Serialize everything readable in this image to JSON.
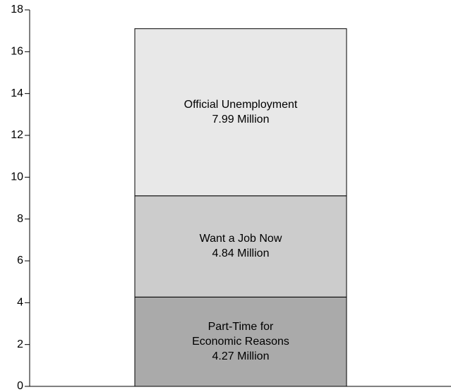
{
  "chart_data": {
    "type": "bar",
    "stacked": true,
    "title": "",
    "xlabel": "",
    "ylabel": "",
    "ylim": [
      0,
      18
    ],
    "yticks": [
      0,
      2,
      4,
      6,
      8,
      10,
      12,
      14,
      16,
      18
    ],
    "grid": false,
    "series": [
      {
        "label_lines": [
          "Part-Time for",
          "Economic Reasons",
          "4.27 Million"
        ],
        "value": 4.27,
        "color": "#aaaaaa"
      },
      {
        "label_lines": [
          "Want a Job Now",
          "4.84 Million"
        ],
        "value": 4.84,
        "color": "#cccccc"
      },
      {
        "label_lines": [
          "Official Unemployment",
          "7.99 Million"
        ],
        "value": 7.99,
        "color": "#e8e8e8"
      }
    ]
  }
}
